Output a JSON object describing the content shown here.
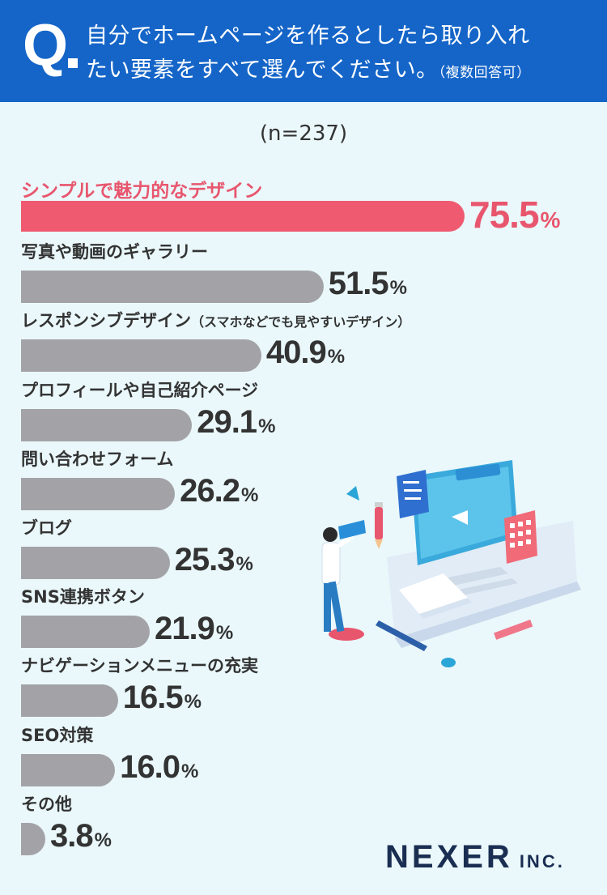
{
  "header": {
    "q_mark": "Q",
    "question_line1": "自分でホームページを作るとしたら取り入れ",
    "question_line2": "たい要素をすべて選んでください。",
    "note": "（複数回答可）"
  },
  "sample_size": "(n=237)",
  "brand": {
    "name": "NEXER",
    "suffix": "INC."
  },
  "colors": {
    "header": "#1565c8",
    "highlight": "#ef5a70",
    "bar": "#a3a3a7",
    "background": "#eaf8fb"
  },
  "chart_data": {
    "type": "bar",
    "orientation": "horizontal",
    "unit": "%",
    "categories": [
      "シンプルで魅力的なデザイン",
      "写真や動画のギャラリー",
      "レスポンシブデザイン",
      "プロフィールや自己紹介ページ",
      "問い合わせフォーム",
      "ブログ",
      "SNS連携ボタン",
      "ナビゲーションメニューの充実",
      "SEO対策",
      "その他"
    ],
    "category_notes": [
      "",
      "",
      "（スマホなどでも見やすいデザイン）",
      "",
      "",
      "",
      "",
      "",
      "",
      ""
    ],
    "values": [
      75.5,
      51.5,
      40.9,
      29.1,
      26.2,
      25.3,
      21.9,
      16.5,
      16.0,
      3.8
    ],
    "value_labels": [
      "75.5",
      "51.5",
      "40.9",
      "29.1",
      "26.2",
      "25.3",
      "21.9",
      "16.5",
      "16.0",
      "3.8"
    ],
    "highlight_index": 0
  }
}
